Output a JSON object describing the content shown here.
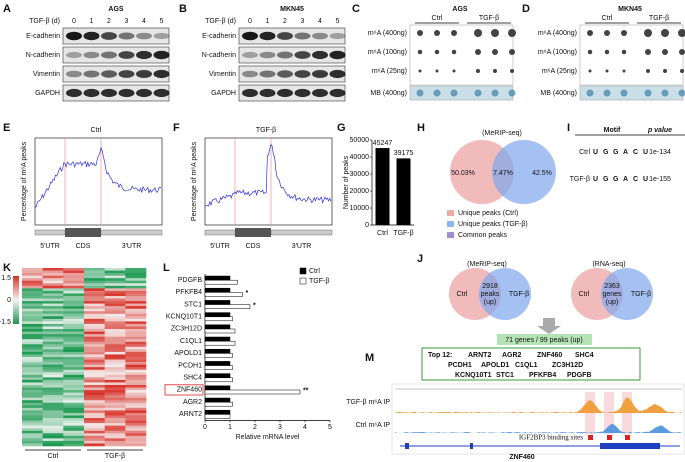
{
  "panels": {
    "A": {
      "label": "A",
      "cell_line": "AGS",
      "time_label": "TGF-β (d)",
      "days": [
        "0",
        "1",
        "2",
        "3",
        "4",
        "5"
      ],
      "proteins": [
        "E-cadherin",
        "N-cadherin",
        "Vimentin",
        "GAPDH"
      ]
    },
    "B": {
      "label": "B",
      "cell_line": "MKN45",
      "time_label": "TGF-β (d)",
      "days": [
        "0",
        "1",
        "2",
        "3",
        "4",
        "5"
      ],
      "proteins": [
        "E-cadherin",
        "N-cadherin",
        "Vimentin",
        "GAPDH"
      ]
    },
    "C": {
      "label": "C",
      "cell_line": "AGS",
      "groups": [
        "Ctrl",
        "TGF-β"
      ],
      "rows": [
        "m⁶A (400ng)",
        "m⁶A (100ng)",
        "m⁶A (25ng)",
        "MB (400ng)"
      ]
    },
    "D": {
      "label": "D",
      "cell_line": "MKN45",
      "groups": [
        "Ctrl",
        "TGF-β"
      ],
      "rows": [
        "m⁶A (400ng)",
        "m⁶A (100ng)",
        "m⁶A (25ng)",
        "MB (400ng)"
      ]
    },
    "E": {
      "label": "E",
      "title": "Ctrl",
      "ylabel": "Percentage of m⁶A peaks",
      "regions": [
        "5'UTR",
        "CDS",
        "3'UTR"
      ]
    },
    "F": {
      "label": "F",
      "title": "TGF-β",
      "ylabel": "Percentage of m⁶A peaks",
      "regions": [
        "5'UTR",
        "CDS",
        "3'UTR"
      ]
    },
    "G": {
      "label": "G"
    },
    "H": {
      "label": "H",
      "title": "(MeRIP-seq)",
      "pct": [
        "50.03%",
        "7.47%",
        "42.5%"
      ],
      "legend": [
        "Unique peaks (Ctrl)",
        "Unique peaks (TGF-β)",
        "Common peaks"
      ]
    },
    "I": {
      "label": "I",
      "headers": [
        "Motif",
        "p value"
      ],
      "rows": [
        {
          "name": "Ctrl",
          "motif": [
            "U",
            "G",
            "G",
            "A",
            "C",
            "U"
          ],
          "p": "1e-134"
        },
        {
          "name": "TGF-β",
          "motif": [
            "U",
            "G",
            "G",
            "A",
            "C",
            "U"
          ],
          "p": "1e-155"
        }
      ]
    },
    "J": {
      "label": "J",
      "venns": [
        {
          "title": "(MeRIP-seq)",
          "left": "Ctrl",
          "center": [
            "2918",
            "peaks",
            "(up)"
          ],
          "right": "TGF-β"
        },
        {
          "title": "(RNA-seq)",
          "left": "Ctrl",
          "center": [
            "2363",
            "genes",
            "(up)"
          ],
          "right": "TGF-β"
        }
      ],
      "overlap": "71 genes / 99 peaks (up)",
      "top_title": "Top 12:",
      "top_genes": [
        "ARNT2",
        "AGR2",
        "ZNF460",
        "SHC4",
        "PCDH1",
        "APOLD1",
        "C1QL1",
        "ZC3H12D",
        "KCNQ10T1",
        "STC1",
        "PFKFB4",
        "PDGFB"
      ]
    },
    "K": {
      "label": "K",
      "scale": [
        "1.5",
        "0",
        "-1.5"
      ],
      "groups": [
        "Ctrl",
        "TGF-β"
      ]
    },
    "L": {
      "label": "L"
    },
    "M": {
      "label": "M",
      "tracks": [
        "TGF-β m⁶A IP",
        "Ctrl m⁶A IP"
      ],
      "sites": "IGF2BP3 binding sites",
      "gene": "ZNF460"
    }
  },
  "chart_data": [
    {
      "type": "bar",
      "categories": [
        "Ctrl",
        "TGF-β"
      ],
      "values": [
        45247,
        39175
      ],
      "color": "#000000",
      "ylabel": "Number of peaks",
      "ylim": [
        0,
        50000
      ],
      "yticks": [
        0,
        10000,
        20000,
        30000,
        40000,
        50000
      ]
    },
    {
      "type": "barh",
      "categories": [
        "PDGFB",
        "PFKFB4",
        "STC1",
        "KCNQ10T1",
        "ZC3H12D",
        "C1QL1",
        "APOLD1",
        "PCDH1",
        "SHC4",
        "ZNF460",
        "AGR2",
        "ARNT2"
      ],
      "series": [
        {
          "name": "Ctrl",
          "color": "#000000",
          "values": [
            1,
            1,
            1,
            1,
            1,
            1,
            1,
            1,
            1,
            1,
            1,
            1
          ]
        },
        {
          "name": "TGF-β",
          "color": "#ffffff",
          "values": [
            1.3,
            1.5,
            1.8,
            1.1,
            1.2,
            1.2,
            1.1,
            1.1,
            1.1,
            3.8,
            1.1,
            1.0
          ]
        }
      ],
      "significance": [
        null,
        "*",
        "*",
        null,
        null,
        null,
        null,
        null,
        null,
        "**",
        null,
        null
      ],
      "xlabel": "Relative mRNA level",
      "xlim": [
        0,
        5
      ],
      "xticks": [
        0,
        1,
        2,
        3,
        4,
        5
      ]
    }
  ]
}
